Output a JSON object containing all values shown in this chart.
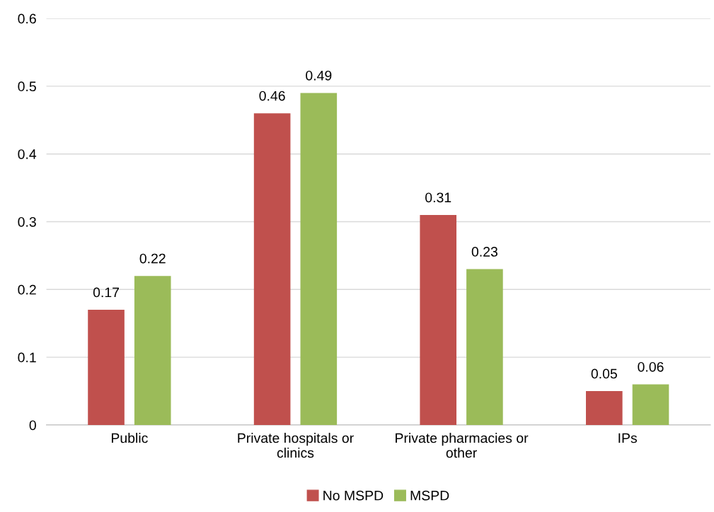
{
  "chart_data": {
    "type": "bar",
    "categories": [
      "Public",
      "Private hospitals or\nclinics",
      "Private pharmacies or\nother",
      "IPs"
    ],
    "series": [
      {
        "name": "No MSPD",
        "color": "#c0504d",
        "values": [
          0.17,
          0.46,
          0.31,
          0.05
        ]
      },
      {
        "name": "MSPD",
        "color": "#9bbb59",
        "values": [
          0.22,
          0.49,
          0.23,
          0.06
        ]
      }
    ],
    "ylim": [
      0,
      0.6
    ],
    "yticks": [
      0,
      0.1,
      0.2,
      0.3,
      0.4,
      0.5,
      0.6
    ],
    "grid": "y",
    "legend": "bottom",
    "data_labels": true
  }
}
